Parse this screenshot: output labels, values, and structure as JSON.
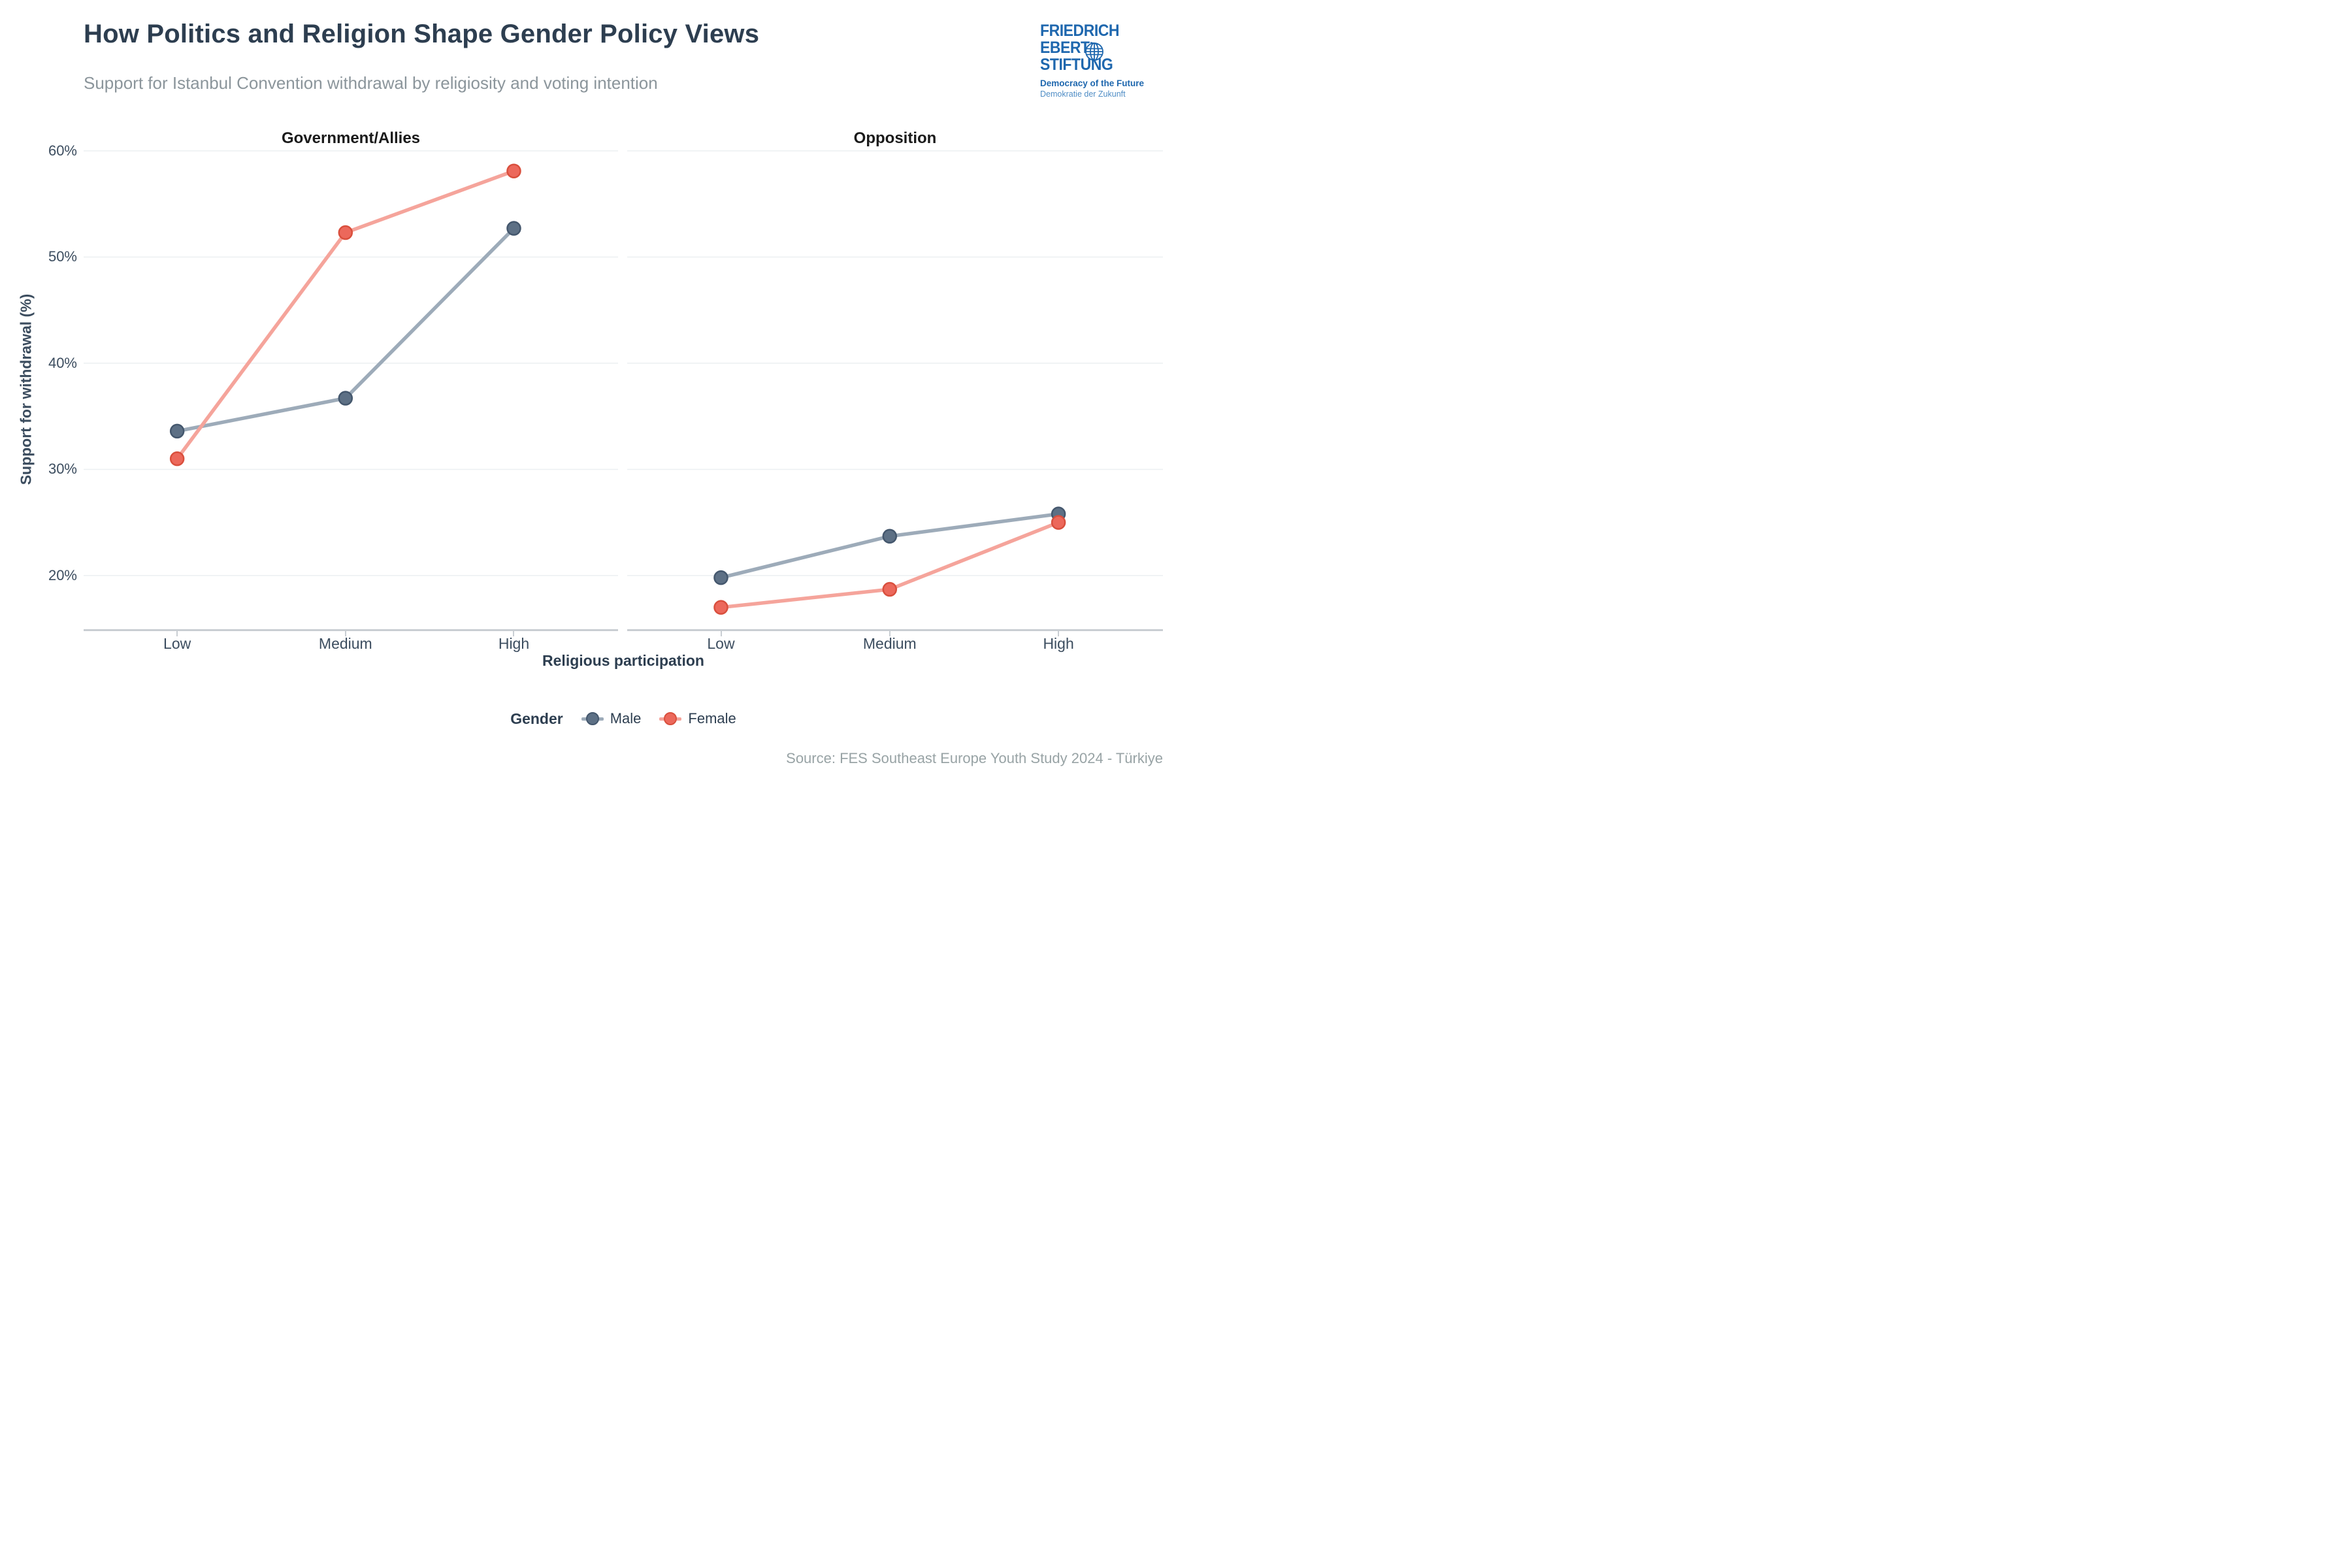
{
  "header": {
    "title": "How Politics and Religion Shape Gender Policy Views",
    "subtitle": "Support for Istanbul Convention withdrawal by religiosity and voting intention"
  },
  "logo": {
    "line1": "FRIEDRICH",
    "line2": "EBERT",
    "line3": "STIFTUNG",
    "tagline_en": "Democracy of the Future",
    "tagline_de": "Demokratie der Zukunft",
    "color_main": "#1e67ae",
    "color_light": "#4f8dc5"
  },
  "chart_data": {
    "type": "line",
    "categories": [
      "Low",
      "Medium",
      "High"
    ],
    "facets": [
      {
        "title": "Government/Allies",
        "series": [
          {
            "name": "Male",
            "values": [
              33.6,
              36.7,
              52.7
            ]
          },
          {
            "name": "Female",
            "values": [
              31.0,
              52.3,
              58.1
            ]
          }
        ]
      },
      {
        "title": "Opposition",
        "series": [
          {
            "name": "Male",
            "values": [
              19.8,
              23.7,
              25.8
            ]
          },
          {
            "name": "Female",
            "values": [
              17.0,
              18.7,
              25.0
            ]
          }
        ]
      }
    ],
    "xlabel": "Religious participation",
    "ylabel": "Support for withdrawal (%)",
    "y_ticks": [
      {
        "value": 60,
        "label": "60%"
      },
      {
        "value": 50,
        "label": "50%"
      },
      {
        "value": 40,
        "label": "40%"
      },
      {
        "value": 30,
        "label": "30%"
      },
      {
        "value": 20,
        "label": "20%"
      }
    ],
    "ylim": [
      14.95,
      60.67
    ],
    "grid": "horizontal-only",
    "legend": {
      "title": "Gender",
      "position": "bottom"
    },
    "series_colors": {
      "Male": {
        "point": "#5d7085",
        "point_stroke": "#44576d",
        "line": "#9dabb9"
      },
      "Female": {
        "point": "#ec685b",
        "point_stroke": "#d94f3d",
        "line": "#f5a49b"
      }
    },
    "gridline_color": "#edf0f2",
    "axis_line_color": "#c9ced3"
  },
  "footer": {
    "source": "Source: FES Southeast Europe Youth Study 2024 - Türkiye"
  }
}
